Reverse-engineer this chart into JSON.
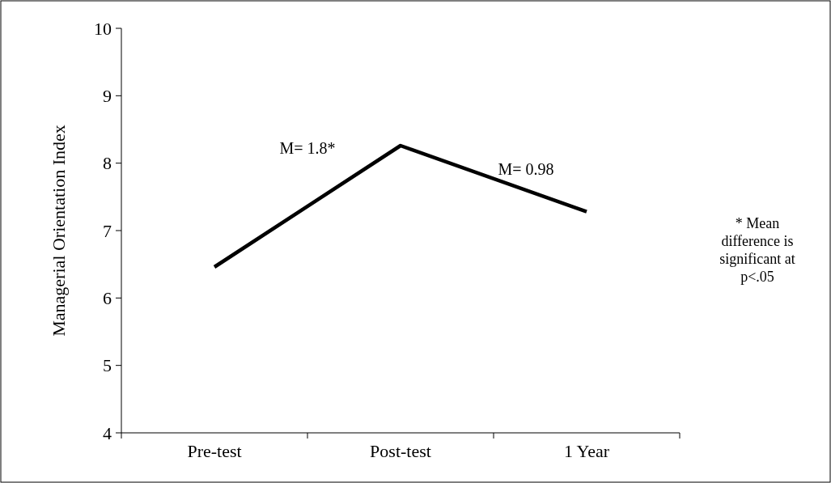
{
  "chart_data": {
    "type": "line",
    "ylabel": "Managerial Orientation  Index",
    "categories": [
      "Pre-test",
      "Post-test",
      "1 Year"
    ],
    "series": [
      {
        "color": "#000000",
        "values": [
          6.46,
          8.26,
          7.28
        ]
      }
    ],
    "ylim": [
      4,
      10
    ],
    "yticks": [
      4,
      5,
      6,
      7,
      8,
      9,
      10
    ],
    "marker": "none",
    "line_style": "solid",
    "annotations": [
      "M= 1.8*",
      "M= 0.98",
      "* Mean difference is significant at p<.05"
    ]
  }
}
